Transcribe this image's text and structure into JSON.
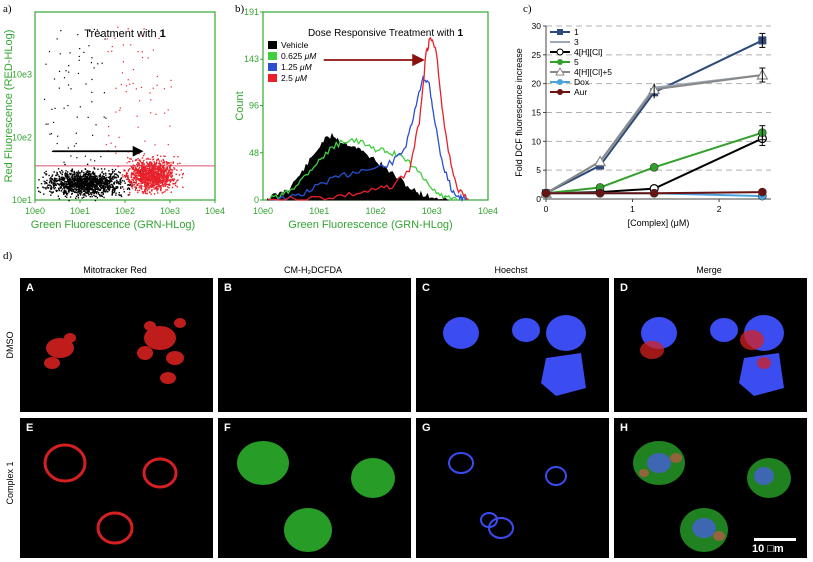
{
  "panels": {
    "a_label": "a)",
    "b_label": "b)",
    "c_label": "c)",
    "d_label": "d)"
  },
  "chart_data": [
    {
      "type": "scatter",
      "title": "Treatment with 1",
      "xlabel": "Green Fluorescence (GRN-HLog)",
      "ylabel": "Red Fluorescence (RED-HLog)",
      "x_scale": "log",
      "y_scale": "log",
      "xlim": [
        10,
        10000
      ],
      "ylim": [
        10,
        10000
      ],
      "xticks": [
        "10e0",
        "10e1",
        "10e2",
        "10e3",
        "10e4"
      ],
      "yticks": [
        "10e1",
        "10e2",
        "10e3"
      ],
      "gate_y": 35,
      "clusters": [
        {
          "name": "",
          "color": "#000000",
          "x_range": [
            12,
            400
          ],
          "y_range": [
            12,
            30
          ]
        },
        {
          "name": "",
          "color": "#e8202a",
          "x_range": [
            300,
            2500
          ],
          "y_range": [
            14,
            45
          ]
        }
      ]
    },
    {
      "type": "line",
      "title": "Dose Responsive Treatment with 1",
      "xlabel": "Green Fluorescence (GRN-HLog)",
      "ylabel": "Count",
      "x_scale": "log",
      "xlim": [
        1,
        10000
      ],
      "ylim": [
        0,
        191
      ],
      "xticks": [
        "10e0",
        "10e1",
        "10e2",
        "10e3",
        "10e4"
      ],
      "yticks": [
        "0",
        "48",
        "96",
        "143",
        "191"
      ],
      "series": [
        {
          "name": "Vehicle",
          "color": "#000000",
          "fill": true,
          "x": [
            1.2,
            2,
            3,
            5,
            8,
            12,
            18,
            25,
            40,
            60,
            100,
            160,
            250,
            400,
            600,
            900,
            1400,
            2000
          ],
          "y": [
            2,
            6,
            12,
            28,
            45,
            60,
            65,
            58,
            55,
            48,
            40,
            30,
            22,
            12,
            6,
            3,
            1,
            0
          ]
        },
        {
          "name": "0.625",
          "unit": "μM",
          "color": "#3fcf3f",
          "x": [
            1.2,
            2,
            3,
            5,
            8,
            12,
            20,
            35,
            60,
            100,
            160,
            250,
            400,
            600,
            900,
            1400,
            2000,
            3000
          ],
          "y": [
            1,
            4,
            10,
            22,
            35,
            45,
            56,
            62,
            58,
            50,
            50,
            45,
            38,
            28,
            14,
            5,
            2,
            0
          ]
        },
        {
          "name": "1.25",
          "unit": "μM",
          "color": "#2a4fcf",
          "x": [
            1.2,
            3,
            6,
            12,
            25,
            50,
            100,
            200,
            350,
            500,
            700,
            900,
            1100,
            1500,
            2200,
            3000,
            4000
          ],
          "y": [
            0,
            2,
            8,
            18,
            24,
            30,
            32,
            38,
            55,
            90,
            125,
            118,
            85,
            40,
            12,
            3,
            0
          ]
        },
        {
          "name": "2.5",
          "unit": "μM",
          "color": "#e8202a",
          "x": [
            1.2,
            5,
            15,
            40,
            100,
            200,
            400,
            600,
            800,
            950,
            1200,
            1600,
            2200,
            3000,
            4500
          ],
          "y": [
            0,
            1,
            3,
            6,
            10,
            15,
            30,
            80,
            150,
            165,
            150,
            85,
            35,
            10,
            1
          ]
        }
      ]
    },
    {
      "type": "line",
      "ylabel": "Fold DCF fluorescence increase",
      "xlabel": "[Complex] (μM)",
      "xlim": [
        0,
        2.6
      ],
      "ylim": [
        0,
        30
      ],
      "xticks": [
        "0",
        "1",
        "2"
      ],
      "yticks": [
        "0",
        "5",
        "10",
        "15",
        "20",
        "25",
        "30"
      ],
      "x": [
        0,
        0.625,
        1.25,
        2.5
      ],
      "series": [
        {
          "name": "1",
          "color": "#2e4a7a",
          "marker": "square-filled",
          "values": [
            1,
            5.8,
            18.5,
            27.5
          ]
        },
        {
          "name": "3",
          "color": "#9aa7b8",
          "marker": "none",
          "values": [
            1,
            6.5,
            19.3,
            21.5
          ]
        },
        {
          "name": "4[H][Cl]",
          "color": "#000000",
          "marker": "circle-open",
          "values": [
            1,
            1.2,
            1.8,
            10.5
          ]
        },
        {
          "name": "5",
          "color": "#33a02c",
          "marker": "circle-filled",
          "values": [
            1,
            2,
            5.5,
            11.5
          ]
        },
        {
          "name": "4[H][Cl]+5",
          "color": "#888888",
          "marker": "triangle-open",
          "values": [
            1,
            6.5,
            19,
            21.5
          ]
        },
        {
          "name": "Dox",
          "color": "#4aa3df",
          "marker": "circle-filled",
          "values": [
            1,
            1,
            1,
            0.5
          ]
        },
        {
          "name": "Aur",
          "color": "#6b1212",
          "marker": "circle-filled",
          "values": [
            1,
            1,
            1,
            1.2
          ]
        }
      ]
    }
  ],
  "micrographs": {
    "columns": [
      "Mitotracker Red",
      "CM-H₂DCFDA",
      "Hoechst",
      "Merge"
    ],
    "rows": [
      "DMSO",
      "Complex 1"
    ],
    "letters": [
      "A",
      "B",
      "C",
      "D",
      "E",
      "F",
      "G",
      "H"
    ],
    "scalebar": "10 □m"
  }
}
